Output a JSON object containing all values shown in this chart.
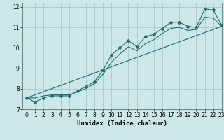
{
  "xlabel": "Humidex (Indice chaleur)",
  "ylabel": "",
  "xlim": [
    -0.5,
    23
  ],
  "ylim": [
    7,
    12.2
  ],
  "yticks": [
    7,
    8,
    9,
    10,
    11,
    12
  ],
  "xticks": [
    0,
    1,
    2,
    3,
    4,
    5,
    6,
    7,
    8,
    9,
    10,
    11,
    12,
    13,
    14,
    15,
    16,
    17,
    18,
    19,
    20,
    21,
    22,
    23
  ],
  "bg_color": "#cce8e8",
  "grid_color": "#aac8c8",
  "line_color": "#1a6e6e",
  "line1_x": [
    0,
    1,
    2,
    3,
    4,
    5,
    6,
    7,
    8,
    9,
    10,
    11,
    12,
    13,
    14,
    15,
    16,
    17,
    18,
    19,
    20,
    21,
    22,
    23
  ],
  "line1_y": [
    7.55,
    7.35,
    7.55,
    7.65,
    7.65,
    7.65,
    7.9,
    8.1,
    8.35,
    8.9,
    9.65,
    10.0,
    10.35,
    10.05,
    10.55,
    10.65,
    10.95,
    11.25,
    11.25,
    11.05,
    11.0,
    11.9,
    11.85,
    11.1
  ],
  "line2_x": [
    0,
    1,
    2,
    3,
    4,
    5,
    6,
    7,
    8,
    9,
    10,
    11,
    12,
    13,
    14,
    15,
    16,
    17,
    18,
    19,
    20,
    21,
    22,
    23
  ],
  "line2_y": [
    7.55,
    7.55,
    7.65,
    7.7,
    7.7,
    7.7,
    7.85,
    8.0,
    8.25,
    8.7,
    9.3,
    9.7,
    10.05,
    9.85,
    10.2,
    10.4,
    10.7,
    10.95,
    11.0,
    10.85,
    10.9,
    11.5,
    11.45,
    11.05
  ],
  "line3_x": [
    0,
    23
  ],
  "line3_y": [
    7.55,
    11.05
  ]
}
